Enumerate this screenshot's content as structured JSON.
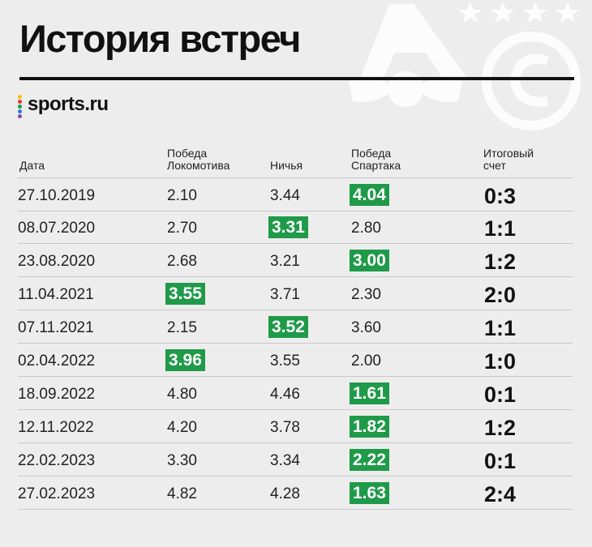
{
  "title": "История встреч",
  "brand": {
    "name": "sports.ru",
    "dot_colors": [
      "#f2c200",
      "#e5343a",
      "#1f9a49",
      "#2d7cd6",
      "#8e44ad"
    ]
  },
  "columns": {
    "date": "Дата",
    "loko_line1": "Победа",
    "loko_line2": "Локомотива",
    "draw": "Ничья",
    "spartak_line1": "Победа",
    "spartak_line2": "Спартака",
    "score_line1": "Итоговый",
    "score_line2": "счет"
  },
  "colors": {
    "win_highlight": "#1f9a49",
    "rule": "#111111"
  },
  "logos": [
    "lokomotiv-crest",
    "spartak-crest",
    "stars"
  ],
  "rows": [
    {
      "date": "27.10.2019",
      "loko": "2.10",
      "draw": "3.44",
      "spartak": "4.04",
      "score": "0:3",
      "winner": "spartak"
    },
    {
      "date": "08.07.2020",
      "loko": "2.70",
      "draw": "3.31",
      "spartak": "2.80",
      "score": "1:1",
      "winner": "draw"
    },
    {
      "date": "23.08.2020",
      "loko": "2.68",
      "draw": "3.21",
      "spartak": "3.00",
      "score": "1:2",
      "winner": "spartak"
    },
    {
      "date": "11.04.2021",
      "loko": "3.55",
      "draw": "3.71",
      "spartak": "2.30",
      "score": "2:0",
      "winner": "loko"
    },
    {
      "date": "07.11.2021",
      "loko": "2.15",
      "draw": "3.52",
      "spartak": "3.60",
      "score": "1:1",
      "winner": "draw"
    },
    {
      "date": "02.04.2022",
      "loko": "3.96",
      "draw": "3.55",
      "spartak": "2.00",
      "score": "1:0",
      "winner": "loko"
    },
    {
      "date": "18.09.2022",
      "loko": "4.80",
      "draw": "4.46",
      "spartak": "1.61",
      "score": "0:1",
      "winner": "spartak"
    },
    {
      "date": "12.11.2022",
      "loko": "4.20",
      "draw": "3.78",
      "spartak": "1.82",
      "score": "1:2",
      "winner": "spartak"
    },
    {
      "date": "22.02.2023",
      "loko": "3.30",
      "draw": "3.34",
      "spartak": "2.22",
      "score": "0:1",
      "winner": "spartak"
    },
    {
      "date": "27.02.2023",
      "loko": "4.82",
      "draw": "4.28",
      "spartak": "1.63",
      "score": "2:4",
      "winner": "spartak"
    }
  ]
}
